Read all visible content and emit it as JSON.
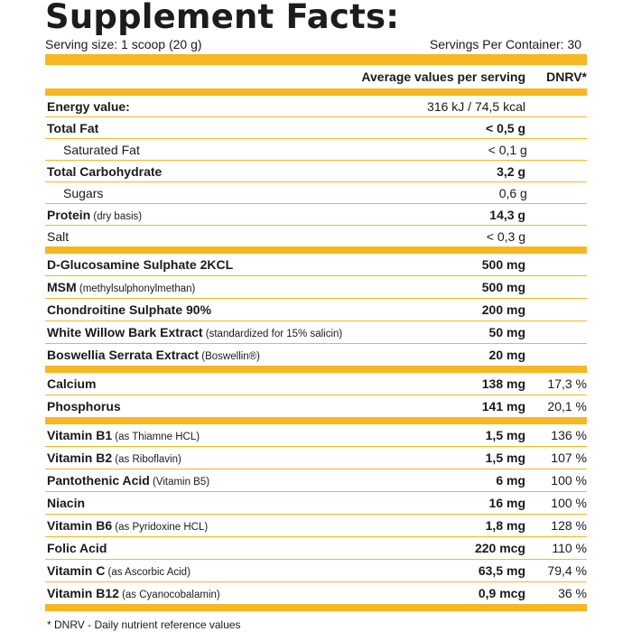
{
  "title": "Supplement Facts:",
  "serving_size": "Serving size: 1 scoop (20 g)",
  "servings_per_container": "Servings Per Container: 30",
  "col_avg": "Average values per serving",
  "col_dnrv": "DNRV*",
  "energy": {
    "name": "Energy value:",
    "value": "316 kJ / 74,5 kcal"
  },
  "macros": [
    {
      "name": "Total Fat",
      "note": "",
      "value": "< 0,5 g",
      "bold": true,
      "indent": false
    },
    {
      "name": "Saturated Fat",
      "note": "",
      "value": "< 0,1 g",
      "bold": false,
      "indent": true
    },
    {
      "name": "Total Carbohydrate",
      "note": "",
      "value": "3,2 g",
      "bold": true,
      "indent": false
    },
    {
      "name": "Sugars",
      "note": "",
      "value": "0,6 g",
      "bold": false,
      "indent": true
    },
    {
      "name": "Protein",
      "note": " (dry basis)",
      "value": "14,3 g",
      "bold": true,
      "indent": false
    },
    {
      "name": "Salt",
      "note": "",
      "value": "< 0,3 g",
      "bold": false,
      "indent": false
    }
  ],
  "actives": [
    {
      "name": "D-Glucosamine Sulphate 2KCL",
      "note": "",
      "value": "500 mg"
    },
    {
      "name": "MSM",
      "note": " (methylsulphonylmethan)",
      "value": "500 mg"
    },
    {
      "name": "Chondroitine Sulphate 90%",
      "note": "",
      "value": "200 mg"
    },
    {
      "name": "White Willow Bark Extract",
      "note": " (standardized for 15% salicin)",
      "value": "50 mg"
    },
    {
      "name": "Boswellia Serrata Extract",
      "note": " (Boswellin®)",
      "value": "20 mg"
    }
  ],
  "minerals": [
    {
      "name": "Calcium",
      "note": "",
      "value": "138 mg",
      "dnrv": "17,3 %"
    },
    {
      "name": "Phosphorus",
      "note": "",
      "value": "141 mg",
      "dnrv": "20,1 %"
    }
  ],
  "vitamins": [
    {
      "name": "Vitamin B1",
      "note": " (as Thiamne HCL)",
      "value": "1,5 mg",
      "dnrv": "136 %"
    },
    {
      "name": "Vitamin B2",
      "note": " (as Riboflavin)",
      "value": "1,5 mg",
      "dnrv": "107 %"
    },
    {
      "name": "Pantothenic Acid",
      "note": " (Vitamin B5)",
      "value": "6 mg",
      "dnrv": "100 %"
    },
    {
      "name": "Niacin",
      "note": "",
      "value": "16 mg",
      "dnrv": "100 %"
    },
    {
      "name": "Vitamin B6",
      "note": " (as Pyridoxine HCL)",
      "value": "1,8 mg",
      "dnrv": "128 %"
    },
    {
      "name": "Folic Acid",
      "note": "",
      "value": "220 mcg",
      "dnrv": "110 %"
    },
    {
      "name": "Vitamin C",
      "note": " (as Ascorbic Acid)",
      "value": "63,5 mg",
      "dnrv": "79,4 %"
    },
    {
      "name": "Vitamin B12",
      "note": " (as Cyanocobalamin)",
      "value": "0,9 mcg",
      "dnrv": "36 %"
    }
  ],
  "footnote": "* DNRV - Daily nutrient reference values",
  "colors": {
    "accent": "#f5b722",
    "text": "#1a1a1a"
  }
}
